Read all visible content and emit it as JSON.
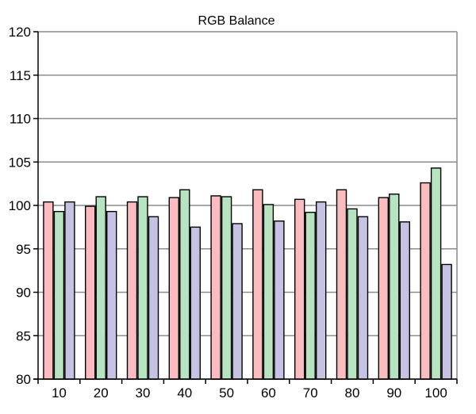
{
  "chart_data": {
    "type": "bar",
    "title": "RGB Balance",
    "xlabel": "",
    "ylabel": "",
    "categories": [
      "10",
      "20",
      "30",
      "40",
      "50",
      "60",
      "70",
      "80",
      "90",
      "100"
    ],
    "series": [
      {
        "color": "#fbbcc0",
        "values": [
          100.4,
          99.9,
          100.4,
          100.9,
          101.1,
          101.8,
          100.7,
          101.8,
          100.9,
          102.6
        ]
      },
      {
        "color": "#b7e4c0",
        "values": [
          99.3,
          101.0,
          101.0,
          101.8,
          101.0,
          100.1,
          99.2,
          99.6,
          101.3,
          104.3
        ]
      },
      {
        "color": "#c5c2e4",
        "values": [
          100.4,
          99.3,
          98.7,
          97.5,
          97.9,
          98.2,
          100.4,
          98.7,
          98.1,
          93.2
        ]
      }
    ],
    "ylim": [
      80,
      120
    ],
    "yticks": [
      80,
      85,
      90,
      95,
      100,
      105,
      110,
      115,
      120
    ],
    "ytick_labels": [
      "80",
      "85",
      "90",
      "95",
      "100",
      "105",
      "110",
      "115",
      "120"
    ],
    "grid": true,
    "legend": "none"
  }
}
